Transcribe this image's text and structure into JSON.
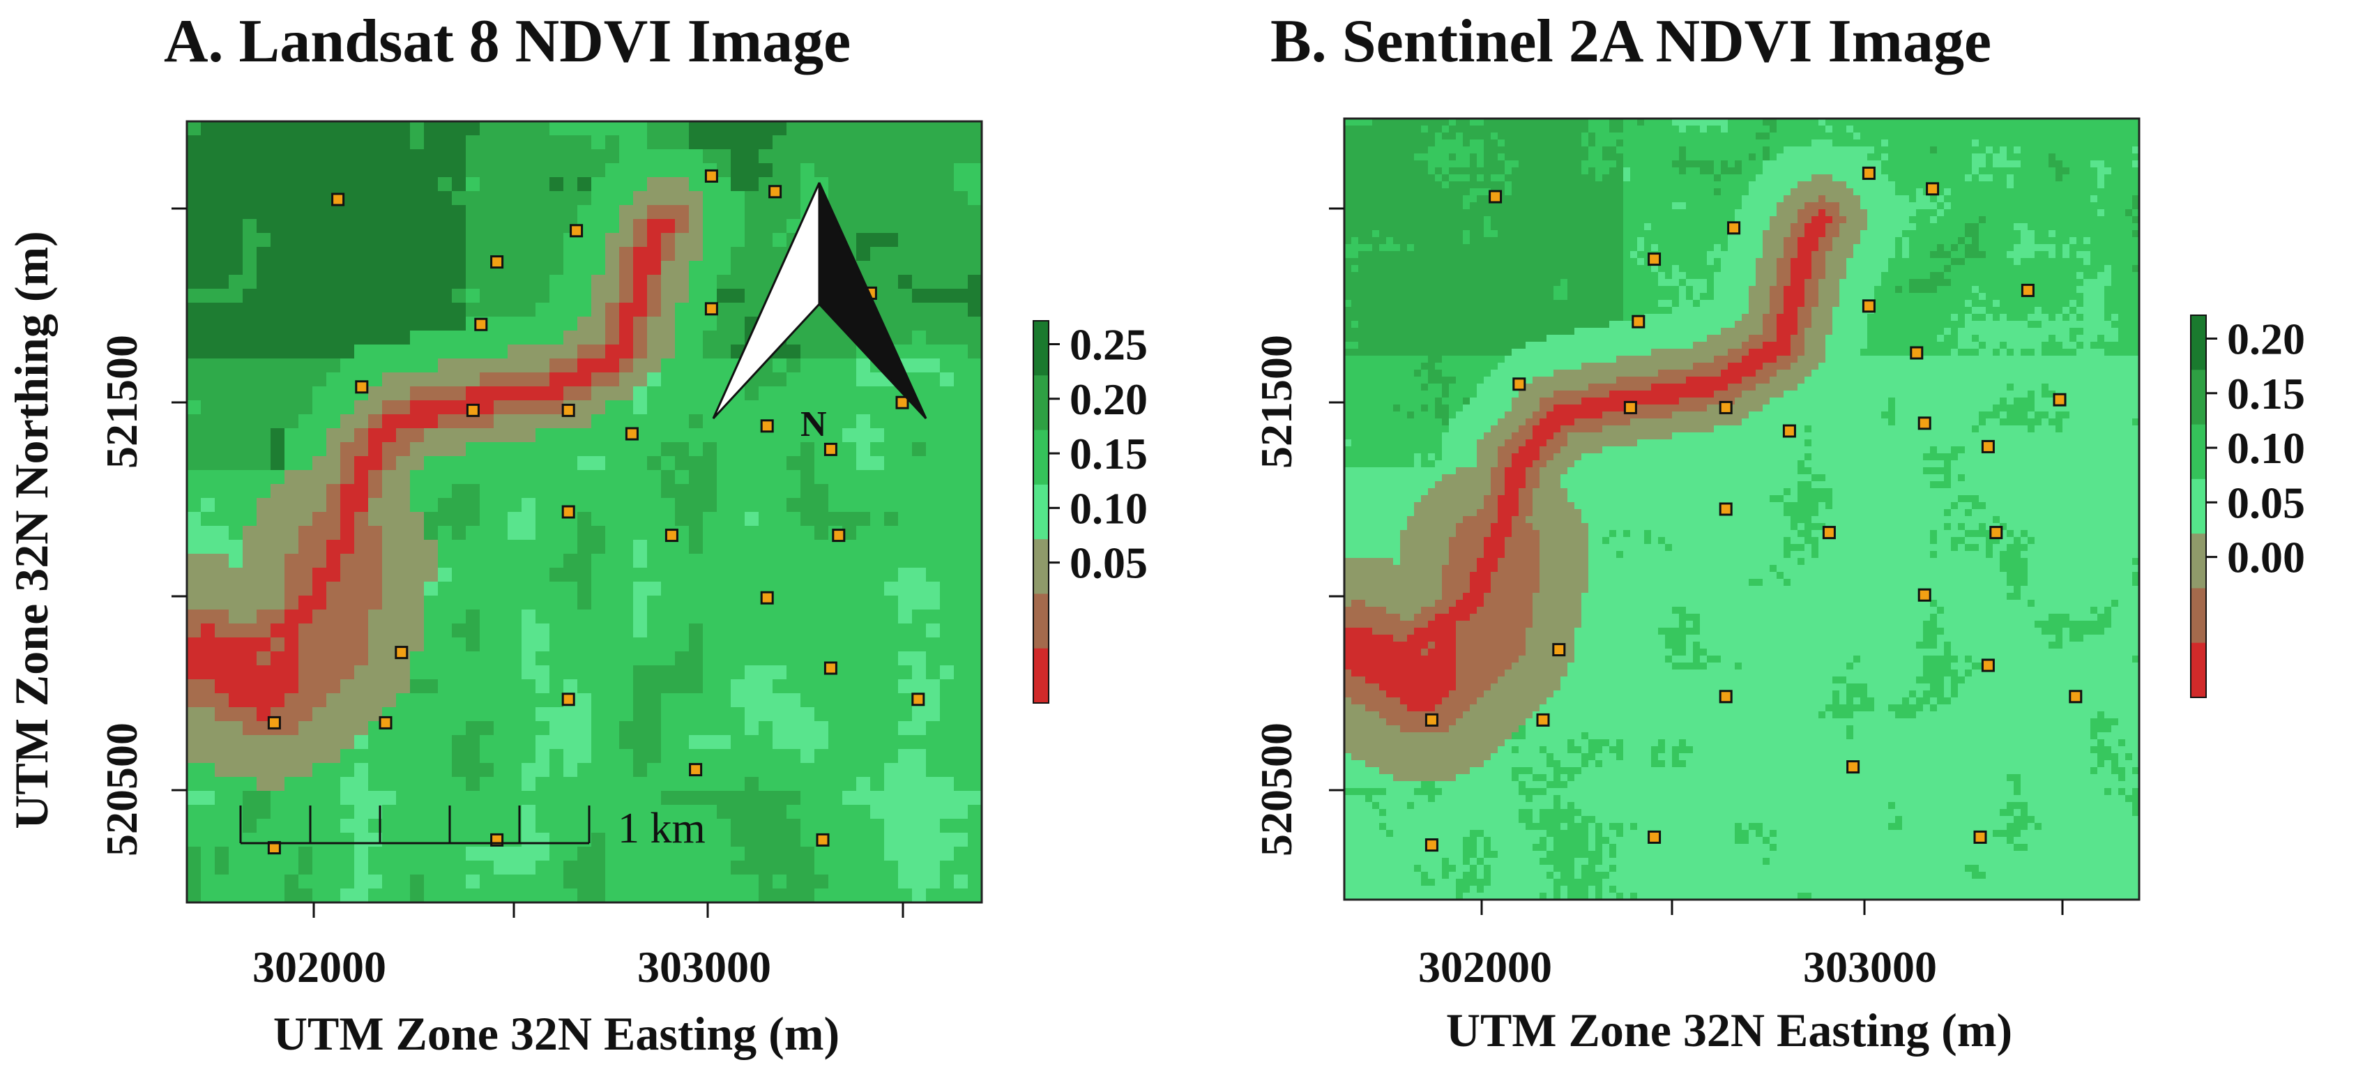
{
  "figure": {
    "panels": [
      {
        "id": "A",
        "title": "A. Landsat 8 NDVI Image",
        "resolution": "coarse",
        "x_ticks": [
          "302000",
          "303000"
        ],
        "y_ticks": [
          "520500",
          "521500"
        ],
        "x_label": "UTM Zone 32N Easting (m)",
        "y_label": "UTM Zone 32N Northing (m)",
        "legend": {
          "labels": [
            "0.25",
            "0.20",
            "0.15",
            "0.10",
            "0.05"
          ],
          "colors": [
            "#1a7a2e",
            "#2ea043",
            "#35c25a",
            "#55e58a",
            "#8f9a6a",
            "#a46a4c",
            "#d12a2a"
          ]
        },
        "scale_bar_label": "1 km",
        "north_arrow_label": "N"
      },
      {
        "id": "B",
        "title": "B. Sentinel 2A NDVI Image",
        "resolution": "fine",
        "x_ticks": [
          "302000",
          "303000"
        ],
        "y_ticks": [
          "520500",
          "521500"
        ],
        "x_label": "UTM Zone 32N Easting (m)",
        "legend": {
          "labels": [
            "0.20",
            "0.15",
            "0.10",
            "0.05",
            "0.00"
          ],
          "colors": [
            "#1a7a2e",
            "#2ea043",
            "#35c25a",
            "#55e58a",
            "#8f9a6a",
            "#a46a4c",
            "#d12a2a"
          ]
        }
      }
    ],
    "palette": {
      "very_high": "#1e7d32",
      "high": "#2faa4a",
      "mid": "#37c75e",
      "low": "#59e48d",
      "olive": "#8e9a68",
      "brown": "#a66d4d",
      "red": "#cf2c2c",
      "marker_fill": "#f2a014",
      "marker_stroke": "#111111"
    }
  }
}
